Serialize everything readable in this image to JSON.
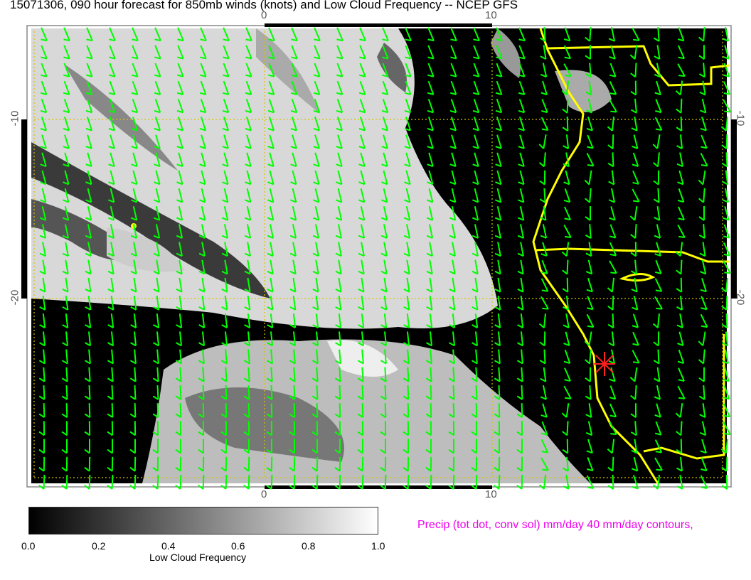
{
  "title": "15071306, 090 hour forecast for 850mb winds (knots) and Low Cloud Frequency -- NCEP GFS",
  "axes": {
    "top_ticks": [
      "0",
      "10"
    ],
    "bottom_ticks": [
      "0",
      "10"
    ],
    "left_ticks": [
      "-10",
      "-20"
    ],
    "right_ticks": [
      "-10",
      "-20"
    ]
  },
  "map": {
    "field": "Low Cloud Frequency",
    "wind_color": "#00ff00",
    "coastline_color": "#ffff00",
    "grid_color": "#d4c400",
    "marker_color": "#ff2020",
    "marker_icon": "asterisk"
  },
  "colorbar": {
    "title": "Low Cloud Frequency",
    "ticks": [
      "0.0",
      "0.2",
      "0.4",
      "0.6",
      "0.8",
      "1.0"
    ],
    "range": [
      0.0,
      1.0
    ],
    "colors": [
      "#000000",
      "#ffffff"
    ]
  },
  "precip_label": "Precip (tot dot, conv sol) mm/day 40 mm/day contours,"
}
